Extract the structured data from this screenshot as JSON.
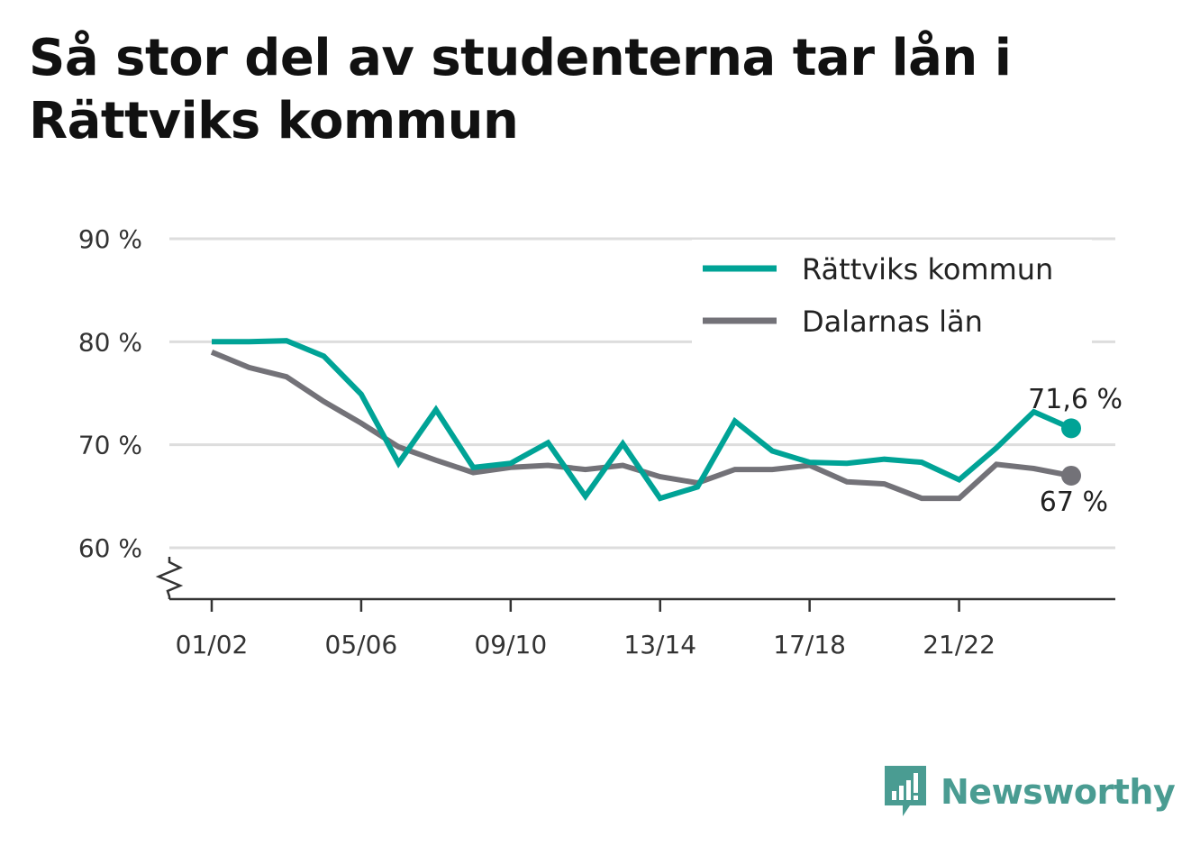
{
  "title": "Så stor del av studenterna tar lån i Rättviks kommun",
  "brand": {
    "name": "Newsworthy",
    "color": "#4a9c92",
    "icon": "newsworthy-logo-icon"
  },
  "colors": {
    "rattvik": "#00a396",
    "dalarna": "#737278",
    "grid": "#dddddd",
    "axis": "#333333"
  },
  "chart_data": {
    "type": "line",
    "title": "Så stor del av studenterna tar lån i Rättviks kommun",
    "xlabel": "",
    "ylabel": "",
    "ylim": [
      55,
      90
    ],
    "yticks": [
      60,
      70,
      80,
      90
    ],
    "ytick_labels": [
      "60 %",
      "70 %",
      "80 %",
      "90 %"
    ],
    "y_axis_break": true,
    "categories": [
      "01/02",
      "02/03",
      "03/04",
      "04/05",
      "05/06",
      "06/07",
      "07/08",
      "08/09",
      "09/10",
      "10/11",
      "11/12",
      "12/13",
      "13/14",
      "14/15",
      "15/16",
      "16/17",
      "17/18",
      "18/19",
      "19/20",
      "20/21",
      "21/22",
      "22/23",
      "23/24",
      "24/25"
    ],
    "xtick_labels": [
      "01/02",
      "05/06",
      "09/10",
      "13/14",
      "17/18",
      "21/22"
    ],
    "grid": true,
    "legend_position": "top-right",
    "series": [
      {
        "name": "Rättviks kommun",
        "color": "#00a396",
        "values": [
          80.0,
          80.0,
          80.1,
          78.6,
          74.9,
          68.2,
          73.4,
          67.8,
          68.2,
          70.2,
          65.0,
          70.1,
          64.8,
          65.9,
          72.3,
          69.4,
          68.3,
          68.2,
          68.6,
          68.3,
          66.6,
          69.7,
          73.2,
          71.6
        ],
        "end_label": "71,6 %"
      },
      {
        "name": "Dalarnas län",
        "color": "#737278",
        "values": [
          79.0,
          77.5,
          76.6,
          74.2,
          72.1,
          69.8,
          68.5,
          67.3,
          67.8,
          68.0,
          67.6,
          68.0,
          66.9,
          66.3,
          67.6,
          67.6,
          68.0,
          66.4,
          66.2,
          64.8,
          64.8,
          68.1,
          67.7,
          67.0
        ],
        "end_label": "67 %"
      }
    ]
  }
}
